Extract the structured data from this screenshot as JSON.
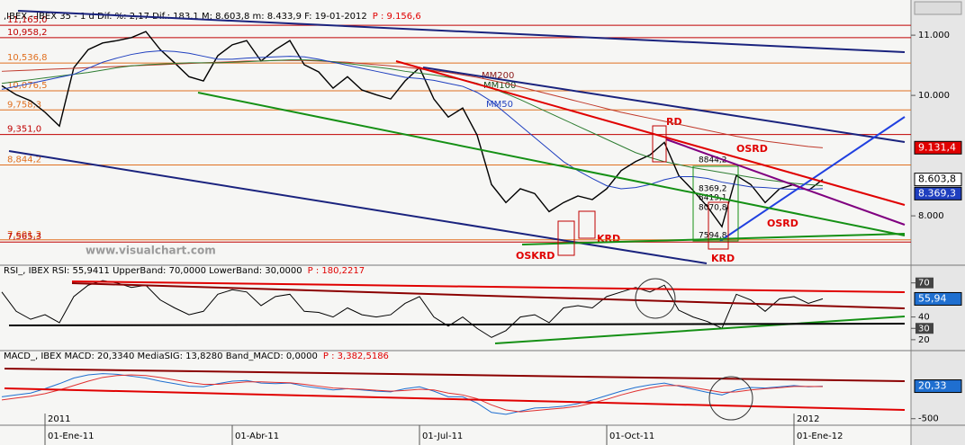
{
  "chart_data": [
    {
      "type": "line",
      "title": ",IBEX - IBEX 35 - 1 d Dif. %: 2,17 Dif.: 183,1 M: 8.603,8 m: 8.433,9 F: 19-01-2012",
      "p_label": "P : 9.156,6",
      "categories": [
        null,
        null,
        null,
        "01-Ene-11",
        null,
        null,
        null,
        null,
        null,
        null,
        null,
        null,
        null,
        null,
        null,
        null,
        "01-Abr-11",
        null,
        null,
        null,
        null,
        null,
        null,
        null,
        null,
        null,
        null,
        null,
        null,
        "01-Jul-11",
        null,
        null,
        null,
        null,
        null,
        null,
        null,
        null,
        null,
        null,
        null,
        null,
        "01-Oct-11",
        null,
        null,
        null,
        null,
        null,
        null,
        null,
        null,
        null,
        null,
        null,
        null,
        "01-Ene-12",
        null,
        null
      ],
      "year_labels": [
        null,
        null,
        null,
        "2011",
        null,
        null,
        null,
        null,
        null,
        null,
        null,
        null,
        null,
        null,
        null,
        null,
        null,
        null,
        null,
        null,
        null,
        null,
        null,
        null,
        null,
        null,
        null,
        null,
        null,
        null,
        null,
        null,
        null,
        null,
        null,
        null,
        null,
        null,
        null,
        null,
        null,
        null,
        null,
        null,
        null,
        null,
        null,
        null,
        null,
        null,
        null,
        null,
        null,
        null,
        null,
        "2012",
        null,
        null
      ],
      "ylim": [
        7210,
        11375
      ],
      "yticks": [
        {
          "value": 11000,
          "label": "11.000"
        },
        {
          "value": 10000,
          "label": "10.000"
        },
        {
          "value": 8000,
          "label": "8.000"
        }
      ],
      "series": [
        {
          "color": "#000000",
          "values": [
            10160,
            10010,
            9910,
            9720,
            9490,
            10460,
            10760,
            10870,
            10910,
            10960,
            11060,
            10760,
            10540,
            10310,
            10240,
            10660,
            10840,
            10910,
            10570,
            10760,
            10910,
            10510,
            10390,
            10120,
            10310,
            10090,
            10010,
            9940,
            10240,
            10460,
            9940,
            9640,
            9790,
            9340,
            8520,
            8220,
            8450,
            8370,
            8070,
            8220,
            8330,
            8270,
            8450,
            8750,
            8900,
            9010,
            9220,
            8670,
            8420,
            8150,
            7820,
            8670,
            8520,
            8220,
            8450,
            8520,
            8420,
            8604
          ]
        },
        {
          "name": "MM200",
          "color": "#c0392b",
          "values": [
            10400,
            10410,
            10420,
            10430,
            10440,
            10450,
            10460,
            10470,
            10480,
            10490,
            10500,
            10510,
            10520,
            10530,
            10540,
            10550,
            10560,
            10570,
            10570,
            10580,
            10580,
            10580,
            10570,
            10560,
            10550,
            10530,
            10510,
            10490,
            10470,
            10440,
            10410,
            10380,
            10340,
            10300,
            10250,
            10200,
            10140,
            10080,
            10020,
            9960,
            9900,
            9840,
            9780,
            9720,
            9670,
            9620,
            9570,
            9520,
            9470,
            9420,
            9370,
            9320,
            9280,
            9240,
            9210,
            9180,
            9150,
            9130
          ]
        },
        {
          "name": "MM100",
          "color": "#2e7d32",
          "values": [
            10200,
            10230,
            10260,
            10290,
            10320,
            10350,
            10380,
            10420,
            10460,
            10490,
            10510,
            10520,
            10530,
            10540,
            10540,
            10540,
            10550,
            10560,
            10570,
            10580,
            10590,
            10590,
            10580,
            10560,
            10530,
            10500,
            10470,
            10440,
            10400,
            10370,
            10340,
            10300,
            10260,
            10200,
            10120,
            10030,
            9930,
            9820,
            9710,
            9600,
            9490,
            9380,
            9270,
            9160,
            9050,
            8970,
            8900,
            8850,
            8800,
            8760,
            8720,
            8680,
            8640,
            8600,
            8570,
            8540,
            8520,
            8500
          ]
        },
        {
          "name": "MM50",
          "color": "#1f3fbf",
          "values": [
            10100,
            10150,
            10200,
            10250,
            10300,
            10350,
            10450,
            10550,
            10620,
            10680,
            10720,
            10740,
            10730,
            10700,
            10650,
            10600,
            10600,
            10620,
            10630,
            10640,
            10650,
            10640,
            10600,
            10550,
            10500,
            10450,
            10400,
            10350,
            10300,
            10280,
            10250,
            10200,
            10150,
            10050,
            9900,
            9700,
            9500,
            9300,
            9100,
            8900,
            8750,
            8620,
            8500,
            8450,
            8470,
            8520,
            8600,
            8650,
            8650,
            8620,
            8560,
            8520,
            8480,
            8470,
            8450,
            8440,
            8440,
            8450
          ]
        }
      ],
      "levels": [
        {
          "value": 11165,
          "label": "11,165,0",
          "color": "#c00000"
        },
        {
          "value": 10958.2,
          "label": "10,958,2",
          "color": "#c00000"
        },
        {
          "value": 10536.8,
          "label": "10,536,8",
          "color": "#e07020"
        },
        {
          "value": 10076.5,
          "label": "10,076,5",
          "color": "#e07020"
        },
        {
          "value": 9758.3,
          "label": "9,758,3",
          "color": "#e07020"
        },
        {
          "value": 9351,
          "label": "9,351,0",
          "color": "#c00000"
        },
        {
          "value": 8844.2,
          "label": "8,844,2",
          "color": "#e07020"
        },
        {
          "value": 7601.2,
          "label": "7,601,2",
          "color": "#e07020"
        },
        {
          "value": 7565.3,
          "label": "7,565,3",
          "color": "#c00000"
        }
      ],
      "last_labels": [
        {
          "value": 9131.4,
          "label": "9.131,4",
          "color": "#e00000"
        },
        {
          "value": 8603.8,
          "label": "8.603,8",
          "color": "#ffffff"
        },
        {
          "value": 8369.3,
          "label": "8.369,3",
          "color": "#1f3fbf"
        }
      ],
      "annotations": [
        "RD",
        "OSRD",
        "OSRD",
        "KRD",
        "OSKRD",
        "KRD",
        "8844,2",
        "8369,2",
        "8419,1",
        "8070,8",
        "7594,8",
        "www.visualchart.com"
      ]
    },
    {
      "type": "line",
      "title": "RSI_, IBEX RSI: 55,9411 UpperBand: 70,0000 LowerBand: 30,0000",
      "p_label": "P : 180,2217",
      "ylim": [
        12,
        84
      ],
      "yticks": [
        20,
        40
      ],
      "bands": [
        70,
        30
      ],
      "series": [
        {
          "color": "#000000",
          "values": [
            62,
            45,
            38,
            42,
            35,
            58,
            68,
            72,
            70,
            66,
            68,
            55,
            48,
            42,
            45,
            60,
            64,
            62,
            50,
            58,
            60,
            45,
            44,
            40,
            48,
            42,
            40,
            42,
            52,
            58,
            40,
            32,
            40,
            30,
            22,
            28,
            40,
            42,
            35,
            48,
            50,
            48,
            58,
            62,
            66,
            62,
            68,
            46,
            40,
            36,
            30,
            60,
            55,
            45,
            56,
            58,
            52,
            56
          ]
        }
      ],
      "last_labels": [
        {
          "value": 55.94,
          "label": "55,94",
          "color": "#1f6fd0"
        }
      ]
    },
    {
      "type": "line",
      "title": "MACD_, IBEX MACD: 20,3340 MediaSIG: 13,8280 Band_MACD: 0,0000",
      "p_label": "P : 3,382,5186",
      "ylim": [
        -590,
        560
      ],
      "yticks": [
        -500
      ],
      "series": [
        {
          "color": "#1f6fd0",
          "values": [
            -150,
            -120,
            -90,
            -20,
            60,
            150,
            200,
            220,
            210,
            180,
            150,
            100,
            60,
            20,
            10,
            60,
            100,
            110,
            70,
            60,
            70,
            20,
            -10,
            -40,
            -20,
            -40,
            -60,
            -70,
            -20,
            10,
            -60,
            -150,
            -150,
            -250,
            -400,
            -430,
            -380,
            -330,
            -320,
            -300,
            -260,
            -200,
            -130,
            -60,
            0,
            40,
            70,
            20,
            -30,
            -80,
            -120,
            -40,
            0,
            -10,
            10,
            30,
            10,
            20
          ]
        },
        {
          "color": "#e03030",
          "values": [
            -200,
            -170,
            -140,
            -100,
            -40,
            30,
            100,
            160,
            190,
            200,
            190,
            160,
            120,
            80,
            50,
            50,
            70,
            90,
            90,
            80,
            75,
            50,
            20,
            -10,
            -20,
            -30,
            -45,
            -60,
            -50,
            -30,
            -40,
            -90,
            -120,
            -180,
            -280,
            -360,
            -390,
            -370,
            -350,
            -330,
            -300,
            -250,
            -190,
            -120,
            -60,
            -10,
            30,
            30,
            0,
            -40,
            -80,
            -70,
            -40,
            -20,
            -5,
            15,
            15,
            14
          ]
        }
      ],
      "last_labels": [
        {
          "value": 20.33,
          "label": "20,33",
          "color": "#1f6fd0"
        }
      ]
    }
  ]
}
